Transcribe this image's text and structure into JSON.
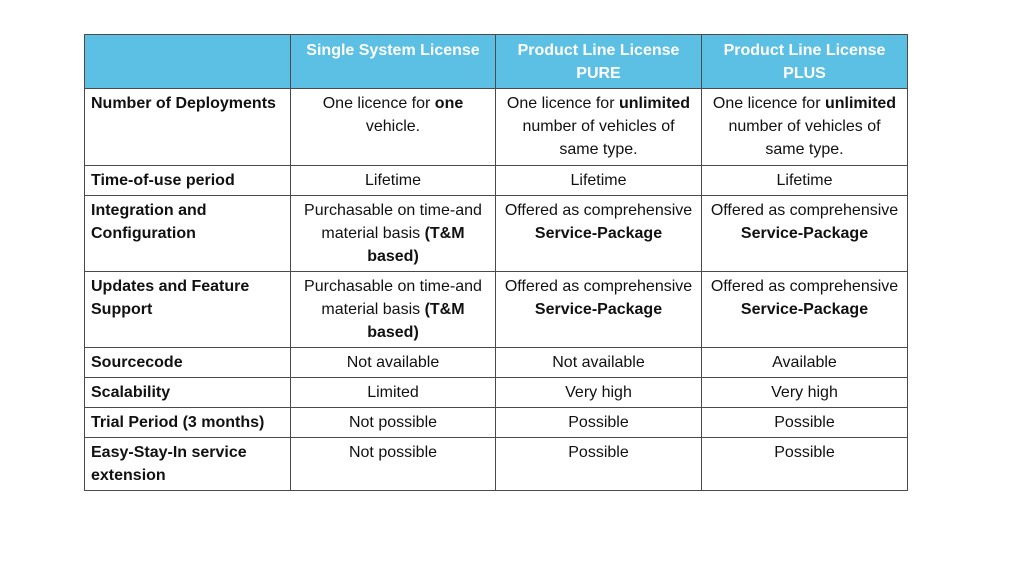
{
  "columns": [
    "",
    "Single System License",
    "Product Line License PURE",
    "Product Line License PLUS"
  ],
  "rows": {
    "deployments": {
      "label": "Number of Deployments",
      "single": {
        "pre": "One licence for ",
        "bold": "one",
        "post": " vehicle."
      },
      "pure": {
        "pre": "One licence for ",
        "bold": "unlimited",
        "post": " number of vehicles of  same type."
      },
      "plus": {
        "pre": "One licence for ",
        "bold": "unlimited",
        "post": " number of vehicles of same type."
      }
    },
    "time_of_use": {
      "label": "Time-of-use period",
      "single": "Lifetime",
      "pure": "Lifetime",
      "plus": "Lifetime"
    },
    "integration": {
      "label": "Integration and Configuration",
      "single": {
        "pre": "Purchasable on time-and material basis ",
        "bold": "(T&M based)"
      },
      "pure": {
        "pre": "Offered as comprehensive ",
        "bold": "Service-Package"
      },
      "plus": {
        "pre": "Offered as comprehensive ",
        "bold": "Service-Package"
      }
    },
    "updates": {
      "label": "Updates and Feature Support",
      "single": {
        "pre": "Purchasable on time-and material basis ",
        "bold": "(T&M based)"
      },
      "pure": {
        "pre": "Offered as comprehensive ",
        "bold": "Service-Package"
      },
      "plus": {
        "pre": "Offered as comprehensive ",
        "bold": "Service-Package"
      }
    },
    "sourcecode": {
      "label": "Sourcecode",
      "single": "Not available",
      "pure": "Not available",
      "plus": "Available"
    },
    "scalability": {
      "label": "Scalability",
      "single": "Limited",
      "pure": "Very high",
      "plus": "Very high"
    },
    "trial": {
      "label": "Trial Period (3 months)",
      "single": "Not possible",
      "pure": "Possible",
      "plus": "Possible"
    },
    "easy_stay": {
      "label": "Easy-Stay-In service extension",
      "single": "Not possible",
      "pure": "Possible",
      "plus": "Possible"
    }
  },
  "colors": {
    "header_bg": "#5bc0e3",
    "header_text": "#ffffff",
    "border": "#4a4a4a"
  }
}
